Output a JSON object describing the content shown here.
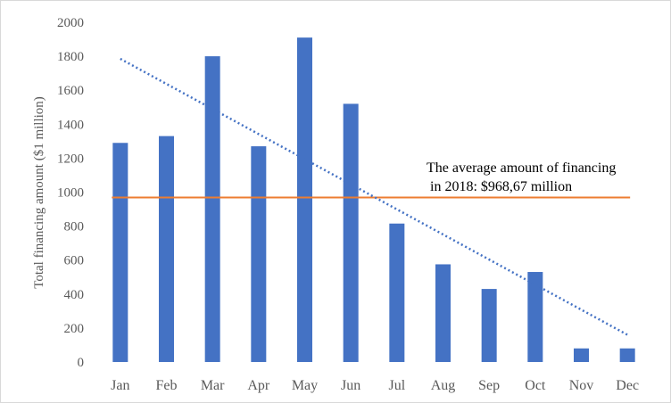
{
  "chart_data": {
    "type": "bar",
    "categories": [
      "Jan",
      "Feb",
      "Mar",
      "Apr",
      "May",
      "Jun",
      "Jul",
      "Aug",
      "Sep",
      "Oct",
      "Nov",
      "Dec"
    ],
    "series": [
      {
        "values": [
          1290,
          1330,
          1800,
          1270,
          1910,
          1520,
          815,
          575,
          430,
          530,
          80,
          80
        ],
        "color": "#4472c4"
      }
    ],
    "average_line": {
      "value": 968.67,
      "color": "#ed7d31"
    },
    "trendline": {
      "type": "linear",
      "style": "dotted",
      "color": "#4472c4",
      "start": 1785,
      "end": 160
    },
    "annotation": {
      "line1": "The average amount of financing",
      "line2": "in 2018: $968,67 million"
    },
    "title": "",
    "xlabel": "",
    "ylabel": "Total financing  amount ($1 million)",
    "ylim": [
      0,
      2000
    ],
    "yticks": [
      0,
      200,
      400,
      600,
      800,
      1000,
      1200,
      1400,
      1600,
      1800,
      2000
    ],
    "grid": false,
    "legend": "none"
  }
}
